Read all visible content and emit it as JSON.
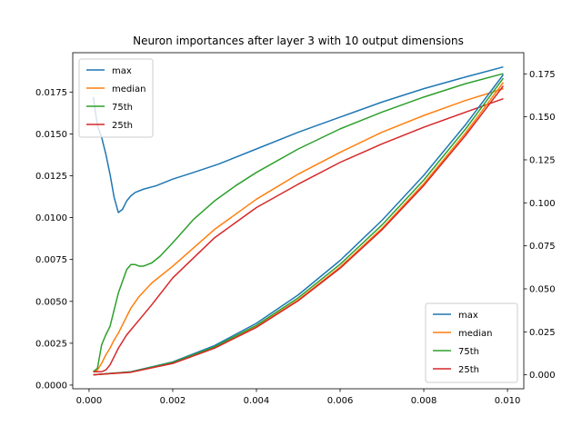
{
  "chart_data": {
    "type": "line",
    "title": "Neuron importances after layer 3 with 10 output dimensions",
    "xlabel": "",
    "ylabel": "",
    "xlim": [
      -0.00039,
      0.01039
    ],
    "x_ticks": [
      0.0,
      0.002,
      0.004,
      0.006,
      0.008,
      0.01
    ],
    "x_tick_labels": [
      "0.000",
      "0.002",
      "0.004",
      "0.006",
      "0.008",
      "0.010"
    ],
    "left_axis": {
      "ylim": [
        -0.00022,
        0.01985
      ],
      "ticks": [
        0.0,
        0.0025,
        0.005,
        0.0075,
        0.01,
        0.0125,
        0.015,
        0.0175
      ],
      "tick_labels": [
        "0.0000",
        "0.0025",
        "0.0050",
        "0.0075",
        "0.0100",
        "0.0125",
        "0.0150",
        "0.0175"
      ],
      "legend_location": "upper-left",
      "series": [
        {
          "name": "max",
          "color": "#1f77b4",
          "x": [
            0.0001,
            0.0002,
            0.0003,
            0.0004,
            0.0005,
            0.0006,
            0.0007,
            0.0008,
            0.0009,
            0.001,
            0.0011,
            0.0013,
            0.0016,
            0.002,
            0.0025,
            0.0031,
            0.004,
            0.005,
            0.006,
            0.007,
            0.008,
            0.009,
            0.0099
          ],
          "y": [
            0.0172,
            0.0155,
            0.0148,
            0.0138,
            0.0126,
            0.0112,
            0.0103,
            0.0105,
            0.011,
            0.0113,
            0.0115,
            0.0117,
            0.0119,
            0.0123,
            0.0127,
            0.0132,
            0.0141,
            0.0151,
            0.016,
            0.0169,
            0.0177,
            0.0184,
            0.019
          ]
        },
        {
          "name": "median",
          "color": "#ff7f0e",
          "x": [
            0.0001,
            0.0002,
            0.0003,
            0.0004,
            0.0005,
            0.0006,
            0.0007,
            0.0008,
            0.0009,
            0.001,
            0.0012,
            0.0015,
            0.002,
            0.0025,
            0.003,
            0.004,
            0.005,
            0.006,
            0.007,
            0.008,
            0.009,
            0.0099
          ],
          "y": [
            0.0008,
            0.0009,
            0.0013,
            0.0018,
            0.0022,
            0.0027,
            0.0031,
            0.0036,
            0.0041,
            0.0046,
            0.0053,
            0.0061,
            0.0071,
            0.0082,
            0.0093,
            0.0111,
            0.0126,
            0.0139,
            0.0151,
            0.0161,
            0.017,
            0.0177
          ]
        },
        {
          "name": "75th",
          "color": "#2ca02c",
          "x": [
            0.0001,
            0.0002,
            0.0003,
            0.0004,
            0.0005,
            0.0006,
            0.0007,
            0.0008,
            0.0009,
            0.001,
            0.0011,
            0.0012,
            0.0013,
            0.0014,
            0.0015,
            0.0017,
            0.002,
            0.0025,
            0.003,
            0.0035,
            0.004,
            0.005,
            0.006,
            0.007,
            0.008,
            0.009,
            0.0099
          ],
          "y": [
            0.0008,
            0.001,
            0.0024,
            0.003,
            0.0035,
            0.0045,
            0.0055,
            0.0062,
            0.0069,
            0.0072,
            0.0072,
            0.0071,
            0.0071,
            0.0072,
            0.0073,
            0.0077,
            0.0085,
            0.0099,
            0.011,
            0.0119,
            0.0127,
            0.0141,
            0.0153,
            0.0163,
            0.0172,
            0.018,
            0.0186
          ]
        },
        {
          "name": "25th",
          "color": "#d62728",
          "x": [
            0.0001,
            0.0002,
            0.0003,
            0.0004,
            0.0005,
            0.0006,
            0.0007,
            0.0008,
            0.0009,
            0.001,
            0.0012,
            0.0015,
            0.002,
            0.0025,
            0.003,
            0.004,
            0.005,
            0.006,
            0.007,
            0.008,
            0.009,
            0.0099
          ],
          "y": [
            0.0008,
            0.0008,
            0.0008,
            0.0009,
            0.0012,
            0.0017,
            0.0022,
            0.0026,
            0.003,
            0.0033,
            0.0039,
            0.0048,
            0.0064,
            0.0076,
            0.0088,
            0.0106,
            0.012,
            0.0133,
            0.0144,
            0.0154,
            0.0163,
            0.0171
          ]
        }
      ]
    },
    "right_axis": {
      "ylim": [
        -0.0081,
        0.1873
      ],
      "ticks": [
        0.0,
        0.025,
        0.05,
        0.075,
        0.1,
        0.125,
        0.15,
        0.175
      ],
      "tick_labels": [
        "0.000",
        "0.025",
        "0.050",
        "0.075",
        "0.100",
        "0.125",
        "0.150",
        "0.175"
      ],
      "legend_location": "lower-right",
      "series": [
        {
          "name": "max",
          "color": "#1f77b4",
          "x": [
            0.0001,
            0.001,
            0.002,
            0.003,
            0.004,
            0.005,
            0.006,
            0.007,
            0.008,
            0.009,
            0.0099
          ],
          "y": [
            0.0,
            0.0018,
            0.0075,
            0.017,
            0.03,
            0.0465,
            0.0665,
            0.0898,
            0.116,
            0.1455,
            0.1745
          ]
        },
        {
          "name": "median",
          "color": "#ff7f0e",
          "x": [
            0.0001,
            0.001,
            0.002,
            0.003,
            0.004,
            0.005,
            0.006,
            0.007,
            0.008,
            0.009,
            0.0099
          ],
          "y": [
            0.0,
            0.0016,
            0.0068,
            0.0158,
            0.028,
            0.0436,
            0.0627,
            0.0852,
            0.1112,
            0.1407,
            0.17
          ]
        },
        {
          "name": "75th",
          "color": "#2ca02c",
          "x": [
            0.0001,
            0.001,
            0.002,
            0.003,
            0.004,
            0.005,
            0.006,
            0.007,
            0.008,
            0.009,
            0.0099
          ],
          "y": [
            0.0,
            0.0017,
            0.0072,
            0.0163,
            0.0288,
            0.0448,
            0.0643,
            0.0871,
            0.1133,
            0.143,
            0.1725
          ]
        },
        {
          "name": "25th",
          "color": "#d62728",
          "x": [
            0.0001,
            0.001,
            0.002,
            0.003,
            0.004,
            0.005,
            0.006,
            0.007,
            0.008,
            0.009,
            0.0099
          ],
          "y": [
            0.0,
            0.0015,
            0.0066,
            0.0155,
            0.0276,
            0.0431,
            0.062,
            0.0843,
            0.1101,
            0.1393,
            0.168
          ]
        }
      ]
    },
    "grid": false
  }
}
